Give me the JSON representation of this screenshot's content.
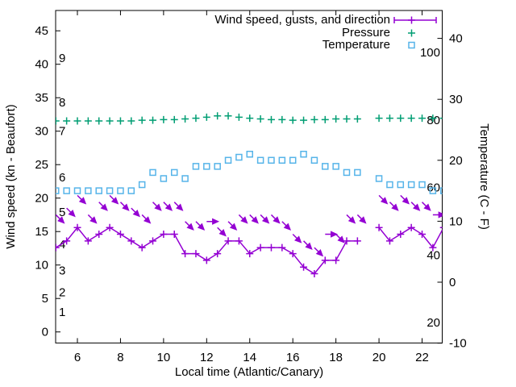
{
  "chart_data": {
    "type": "line",
    "title": "",
    "xlabel": "Local time (Atlantic/Canary)",
    "ylabel_left": "Wind speed (kn - Beaufort)",
    "ylabel_right": "Temperature (C - F)",
    "grid": false,
    "legend_position": "top-right-inside",
    "xlim": [
      4.95,
      23.1
    ],
    "ylim_left": [
      -1.6,
      48.0
    ],
    "ylim_right": [
      -10,
      44.6
    ],
    "x_ticks": [
      6,
      8,
      10,
      12,
      14,
      16,
      18,
      20,
      22
    ],
    "y_ticks_left": [
      0,
      5,
      10,
      15,
      20,
      25,
      30,
      35,
      40,
      45
    ],
    "y_ticks_right": [
      -10,
      0,
      10,
      20,
      30,
      40
    ],
    "beaufort_labels": [
      {
        "label": "1",
        "kn": 3.0
      },
      {
        "label": "2",
        "kn": 5.9
      },
      {
        "label": "3",
        "kn": 9.2
      },
      {
        "label": "4",
        "kn": 13.1
      },
      {
        "label": "5",
        "kn": 17.9
      },
      {
        "label": "6",
        "kn": 23.1
      },
      {
        "label": "7",
        "kn": 30.0
      },
      {
        "label": "8",
        "kn": 34.3
      },
      {
        "label": "9",
        "kn": 40.9
      }
    ],
    "inner_right_labels": [
      {
        "label": "100",
        "value": 100
      },
      {
        "label": "80",
        "value": 80
      },
      {
        "label": "60",
        "value": 60
      },
      {
        "label": "40",
        "value": 40
      },
      {
        "label": "20",
        "value": 20
      }
    ],
    "legend": [
      {
        "label": "Wind speed, gusts, and direction",
        "series": "wind",
        "color": "#9400d3"
      },
      {
        "label": "Pressure",
        "series": "pressure",
        "color": "#009e73"
      },
      {
        "label": "Temperature",
        "series": "temperature",
        "color": "#56b4e9"
      }
    ],
    "x": [
      5,
      5.5,
      6,
      6.5,
      7,
      7.5,
      8,
      8.5,
      9,
      9.5,
      10,
      10.5,
      11,
      11.5,
      12,
      12.5,
      13,
      13.5,
      14,
      14.5,
      15,
      15.5,
      16,
      16.5,
      17,
      17.5,
      18,
      18.5,
      19,
      19.5,
      20,
      20.5,
      21,
      21.5,
      22,
      22.5,
      23
    ],
    "series": [
      {
        "name": "wind_speed_kn",
        "axis": "left",
        "color": "#9400d3",
        "values": [
          12.6,
          13.6,
          15.6,
          13.6,
          14.6,
          15.6,
          14.6,
          13.6,
          12.6,
          13.6,
          14.6,
          14.6,
          11.7,
          11.7,
          10.7,
          11.7,
          13.6,
          13.6,
          11.7,
          12.6,
          12.6,
          12.6,
          11.7,
          9.7,
          8.7,
          10.7,
          10.7,
          13.6,
          13.6,
          null,
          15.6,
          13.6,
          14.6,
          15.6,
          14.6,
          12.6,
          15.6
        ]
      },
      {
        "name": "wind_gusts_kn",
        "axis": "left",
        "color": "#9400d3",
        "values": [
          17.5,
          18.5,
          20.4,
          17.5,
          19.4,
          20.4,
          19.4,
          18.5,
          17.5,
          19.4,
          19.4,
          19.4,
          16.5,
          16.5,
          16.5,
          15.6,
          16.5,
          17.5,
          17.5,
          17.5,
          17.5,
          16.5,
          14.6,
          13.6,
          12.6,
          14.6,
          14.6,
          17.5,
          17.5,
          null,
          20.4,
          19.4,
          20.4,
          19.4,
          19.4,
          17.5,
          19.4
        ]
      },
      {
        "name": "wind_direction_arrows",
        "axis": "left",
        "color": "#9400d3",
        "values": [
          "SE",
          "SE",
          "SE",
          "SE",
          "SE",
          "SE",
          "SE",
          "SE",
          "SE",
          "SE",
          "SE",
          "SE",
          "SE",
          "SE",
          "E",
          "SE",
          "SE",
          "SE",
          "SE",
          "SE",
          "SE",
          "SE",
          "SE",
          "SE",
          "SE",
          "E",
          "SE",
          "SE",
          "SE",
          null,
          "SE",
          "SE",
          "SE",
          "SE",
          "SE",
          "E",
          "SE"
        ]
      },
      {
        "name": "pressure",
        "axis": "inner-right",
        "color": "#009e73",
        "values": [
          79.7,
          79.7,
          79.7,
          79.7,
          79.7,
          79.7,
          79.7,
          79.7,
          79.9,
          79.9,
          80.1,
          80.1,
          80.3,
          80.5,
          80.8,
          81.2,
          81.2,
          80.8,
          80.5,
          80.3,
          80.1,
          80.1,
          79.9,
          79.9,
          80.1,
          80.1,
          80.3,
          80.3,
          80.3,
          null,
          80.5,
          80.5,
          80.5,
          80.5,
          80.5,
          80.5,
          80.5
        ]
      },
      {
        "name": "temperature_c",
        "axis": "right",
        "color": "#56b4e9",
        "values": [
          15,
          15,
          15,
          15,
          15,
          15,
          15,
          15,
          16,
          18,
          17,
          18,
          17,
          19,
          19,
          19,
          20,
          20.5,
          21,
          20,
          20,
          20,
          20,
          21,
          20,
          19,
          19,
          18,
          18,
          null,
          17,
          16,
          16,
          16,
          16,
          15,
          15
        ]
      }
    ]
  }
}
